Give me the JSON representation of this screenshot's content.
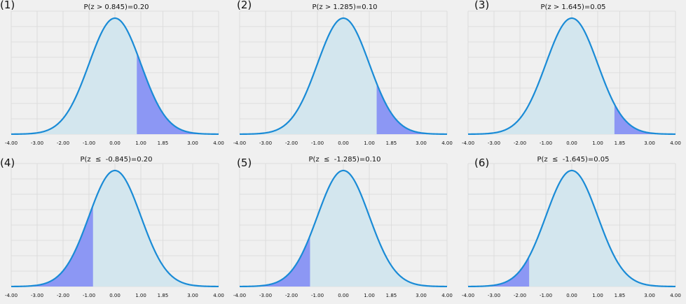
{
  "colors": {
    "background": "#f0f0f0",
    "curve": "#1a8bd6",
    "curve_fill": "#d3e6ee",
    "shade": "#8c97f4",
    "grid": "#d9d9d9"
  },
  "chart_data": [
    {
      "type": "area",
      "label": "(1)",
      "title": "P(z > 0.845)=0.20",
      "tail": "right",
      "z": 0.845,
      "probability": 0.2,
      "xlim": [
        -4.0,
        4.0
      ],
      "xticks": [
        -4.0,
        -3.0,
        -2.0,
        -1.0,
        0.0,
        1.0,
        1.85,
        3.0,
        4.0
      ],
      "xtick_labels": [
        "-4.00",
        "-3.00",
        "-2.00",
        "-1.00",
        "0.00",
        "1.00",
        "1.85",
        "3.00",
        "4.00"
      ],
      "grid": true
    },
    {
      "type": "area",
      "label": "(2)",
      "title": "P(z > 1.285)=0.10",
      "tail": "right",
      "z": 1.285,
      "probability": 0.1,
      "xlim": [
        -4.0,
        4.0
      ],
      "xticks": [
        -4.0,
        -3.0,
        -2.0,
        -1.0,
        0.0,
        1.0,
        1.85,
        3.0,
        4.0
      ],
      "xtick_labels": [
        "-4.00",
        "-3.00",
        "-2.00",
        "-1.00",
        "0.00",
        "1.00",
        "1.85",
        "3.00",
        "4.00"
      ],
      "grid": true
    },
    {
      "type": "area",
      "label": "(3)",
      "title": "P(z > 1.645)=0.05",
      "tail": "right",
      "z": 1.645,
      "probability": 0.05,
      "xlim": [
        -4.0,
        4.0
      ],
      "xticks": [
        -4.0,
        -3.0,
        -2.0,
        -1.0,
        0.0,
        1.0,
        1.85,
        3.0,
        4.0
      ],
      "xtick_labels": [
        "-4.00",
        "-3.00",
        "-2.00",
        "-1.00",
        "0.00",
        "1.00",
        "1.85",
        "3.00",
        "4.00"
      ],
      "grid": true
    },
    {
      "type": "area",
      "label": "(4)",
      "title": "P(z  ≤  -0.845)=0.20",
      "tail": "left",
      "z": -0.845,
      "probability": 0.2,
      "xlim": [
        -4.0,
        4.0
      ],
      "xticks": [
        -4.0,
        -3.0,
        -2.0,
        -1.0,
        0.0,
        1.0,
        1.85,
        3.0,
        4.0
      ],
      "xtick_labels": [
        "-4.00",
        "-3.00",
        "-2.00",
        "-1.00",
        "0.00",
        "1.00",
        "1.85",
        "3.00",
        "4.00"
      ],
      "grid": true
    },
    {
      "type": "area",
      "label": "(5)",
      "title": "P(z  ≤  -1.285)=0.10",
      "tail": "left",
      "z": -1.285,
      "probability": 0.1,
      "xlim": [
        -4.0,
        4.0
      ],
      "xticks": [
        -4.0,
        -3.0,
        -2.0,
        -1.0,
        0.0,
        1.0,
        1.85,
        3.0,
        4.0
      ],
      "xtick_labels": [
        "-4.00",
        "-3.00",
        "-2.00",
        "-1.00",
        "0.00",
        "1.00",
        "1.85",
        "3.00",
        "4.00"
      ],
      "grid": true
    },
    {
      "type": "area",
      "label": "(6)",
      "title": "P(z  ≤  -1.645)=0.05",
      "tail": "left",
      "z": -1.645,
      "probability": 0.05,
      "xlim": [
        -4.0,
        4.0
      ],
      "xticks": [
        -4.0,
        -3.0,
        -2.0,
        -1.0,
        0.0,
        1.0,
        1.85,
        3.0,
        4.0
      ],
      "xtick_labels": [
        "-4.00",
        "-3.00",
        "-2.00",
        "-1.00",
        "0.00",
        "1.00",
        "1.85",
        "3.00",
        "4.00"
      ],
      "grid": true
    }
  ]
}
